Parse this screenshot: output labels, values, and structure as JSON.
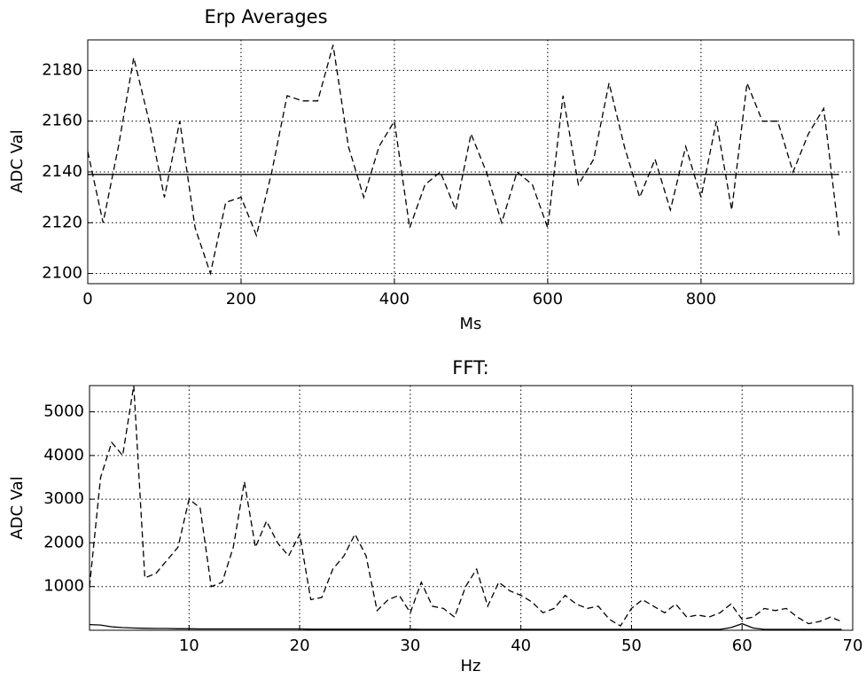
{
  "chart_data": [
    {
      "type": "line",
      "title": "Erp Averages",
      "xlabel": "Ms",
      "ylabel": "ADC Val",
      "x": [
        0,
        20,
        40,
        60,
        80,
        100,
        120,
        140,
        160,
        180,
        200,
        220,
        240,
        260,
        280,
        300,
        320,
        340,
        360,
        380,
        400,
        420,
        440,
        460,
        480,
        500,
        520,
        540,
        560,
        580,
        600,
        620,
        640,
        660,
        680,
        700,
        720,
        740,
        760,
        780,
        800,
        820,
        840,
        860,
        880,
        900,
        920,
        940,
        960,
        980
      ],
      "series": [
        {
          "color": "#000000",
          "style": "dashed",
          "values": [
            2148,
            2120,
            2150,
            2185,
            2160,
            2130,
            2160,
            2118,
            2100,
            2128,
            2130,
            2115,
            2140,
            2170,
            2168,
            2168,
            2190,
            2150,
            2130,
            2150,
            2160,
            2118,
            2135,
            2140,
            2125,
            2155,
            2140,
            2120,
            2140,
            2135,
            2118,
            2170,
            2135,
            2145,
            2175,
            2150,
            2130,
            2145,
            2125,
            2150,
            2130,
            2160,
            2125,
            2175,
            2160,
            2160,
            2140,
            2155,
            2165,
            2115
          ]
        },
        {
          "color": "#000000",
          "style": "solid",
          "values": [
            2139,
            2139,
            2139,
            2139,
            2139,
            2139,
            2139,
            2139,
            2139,
            2139,
            2139,
            2139,
            2139,
            2139,
            2139,
            2139,
            2139,
            2139,
            2139,
            2139,
            2139,
            2139,
            2139,
            2139,
            2139,
            2139,
            2139,
            2139,
            2139,
            2139,
            2139,
            2139,
            2139,
            2139,
            2139,
            2139,
            2139,
            2139,
            2139,
            2139,
            2139,
            2139,
            2139,
            2139,
            2139,
            2139,
            2139,
            2139,
            2139,
            2139
          ]
        }
      ],
      "xlim": [
        0,
        999
      ],
      "xticks": [
        0,
        200,
        400,
        600,
        800
      ],
      "ylim": [
        2096,
        2192
      ],
      "yticks": [
        2100,
        2120,
        2140,
        2160,
        2180
      ],
      "grid": true
    },
    {
      "type": "line",
      "title": "FFT:",
      "xlabel": "Hz",
      "ylabel": "ADC Val",
      "x": [
        1,
        2,
        3,
        4,
        5,
        6,
        7,
        8,
        9,
        10,
        11,
        12,
        13,
        14,
        15,
        16,
        17,
        18,
        19,
        20,
        21,
        22,
        23,
        24,
        25,
        26,
        27,
        28,
        29,
        30,
        31,
        32,
        33,
        34,
        35,
        36,
        37,
        38,
        39,
        40,
        41,
        42,
        43,
        44,
        45,
        46,
        47,
        48,
        49,
        50,
        51,
        52,
        53,
        54,
        55,
        56,
        57,
        58,
        59,
        60,
        61,
        62,
        63,
        64,
        65,
        66,
        67,
        68,
        69
      ],
      "series": [
        {
          "color": "#000000",
          "style": "dashed",
          "values": [
            1000,
            3500,
            4300,
            4000,
            5600,
            1200,
            1300,
            1600,
            1900,
            3000,
            2800,
            1000,
            1100,
            1900,
            3400,
            1900,
            2500,
            2000,
            1700,
            2200,
            700,
            750,
            1400,
            1700,
            2200,
            1700,
            450,
            700,
            800,
            400,
            1100,
            550,
            500,
            300,
            1000,
            1400,
            550,
            1100,
            900,
            800,
            650,
            400,
            500,
            800,
            600,
            500,
            550,
            250,
            100,
            500,
            700,
            550,
            400,
            600,
            300,
            350,
            300,
            400,
            600,
            250,
            300,
            500,
            450,
            500,
            300,
            150,
            200,
            300,
            200
          ]
        },
        {
          "color": "#000000",
          "style": "solid",
          "values": [
            130,
            120,
            80,
            60,
            50,
            45,
            40,
            40,
            35,
            35,
            30,
            30,
            30,
            30,
            30,
            30,
            30,
            30,
            30,
            30,
            25,
            25,
            25,
            25,
            25,
            25,
            25,
            25,
            25,
            25,
            20,
            20,
            20,
            20,
            20,
            20,
            20,
            20,
            20,
            20,
            20,
            20,
            20,
            20,
            20,
            20,
            20,
            20,
            20,
            20,
            20,
            20,
            20,
            20,
            20,
            20,
            20,
            20,
            60,
            150,
            50,
            20,
            20,
            20,
            20,
            20,
            20,
            20,
            20
          ]
        }
      ],
      "xlim": [
        1,
        70
      ],
      "xticks": [
        10,
        20,
        30,
        40,
        50,
        60,
        70
      ],
      "ylim": [
        0,
        5600
      ],
      "yticks": [
        1000,
        2000,
        3000,
        4000,
        5000
      ],
      "grid": true
    }
  ]
}
